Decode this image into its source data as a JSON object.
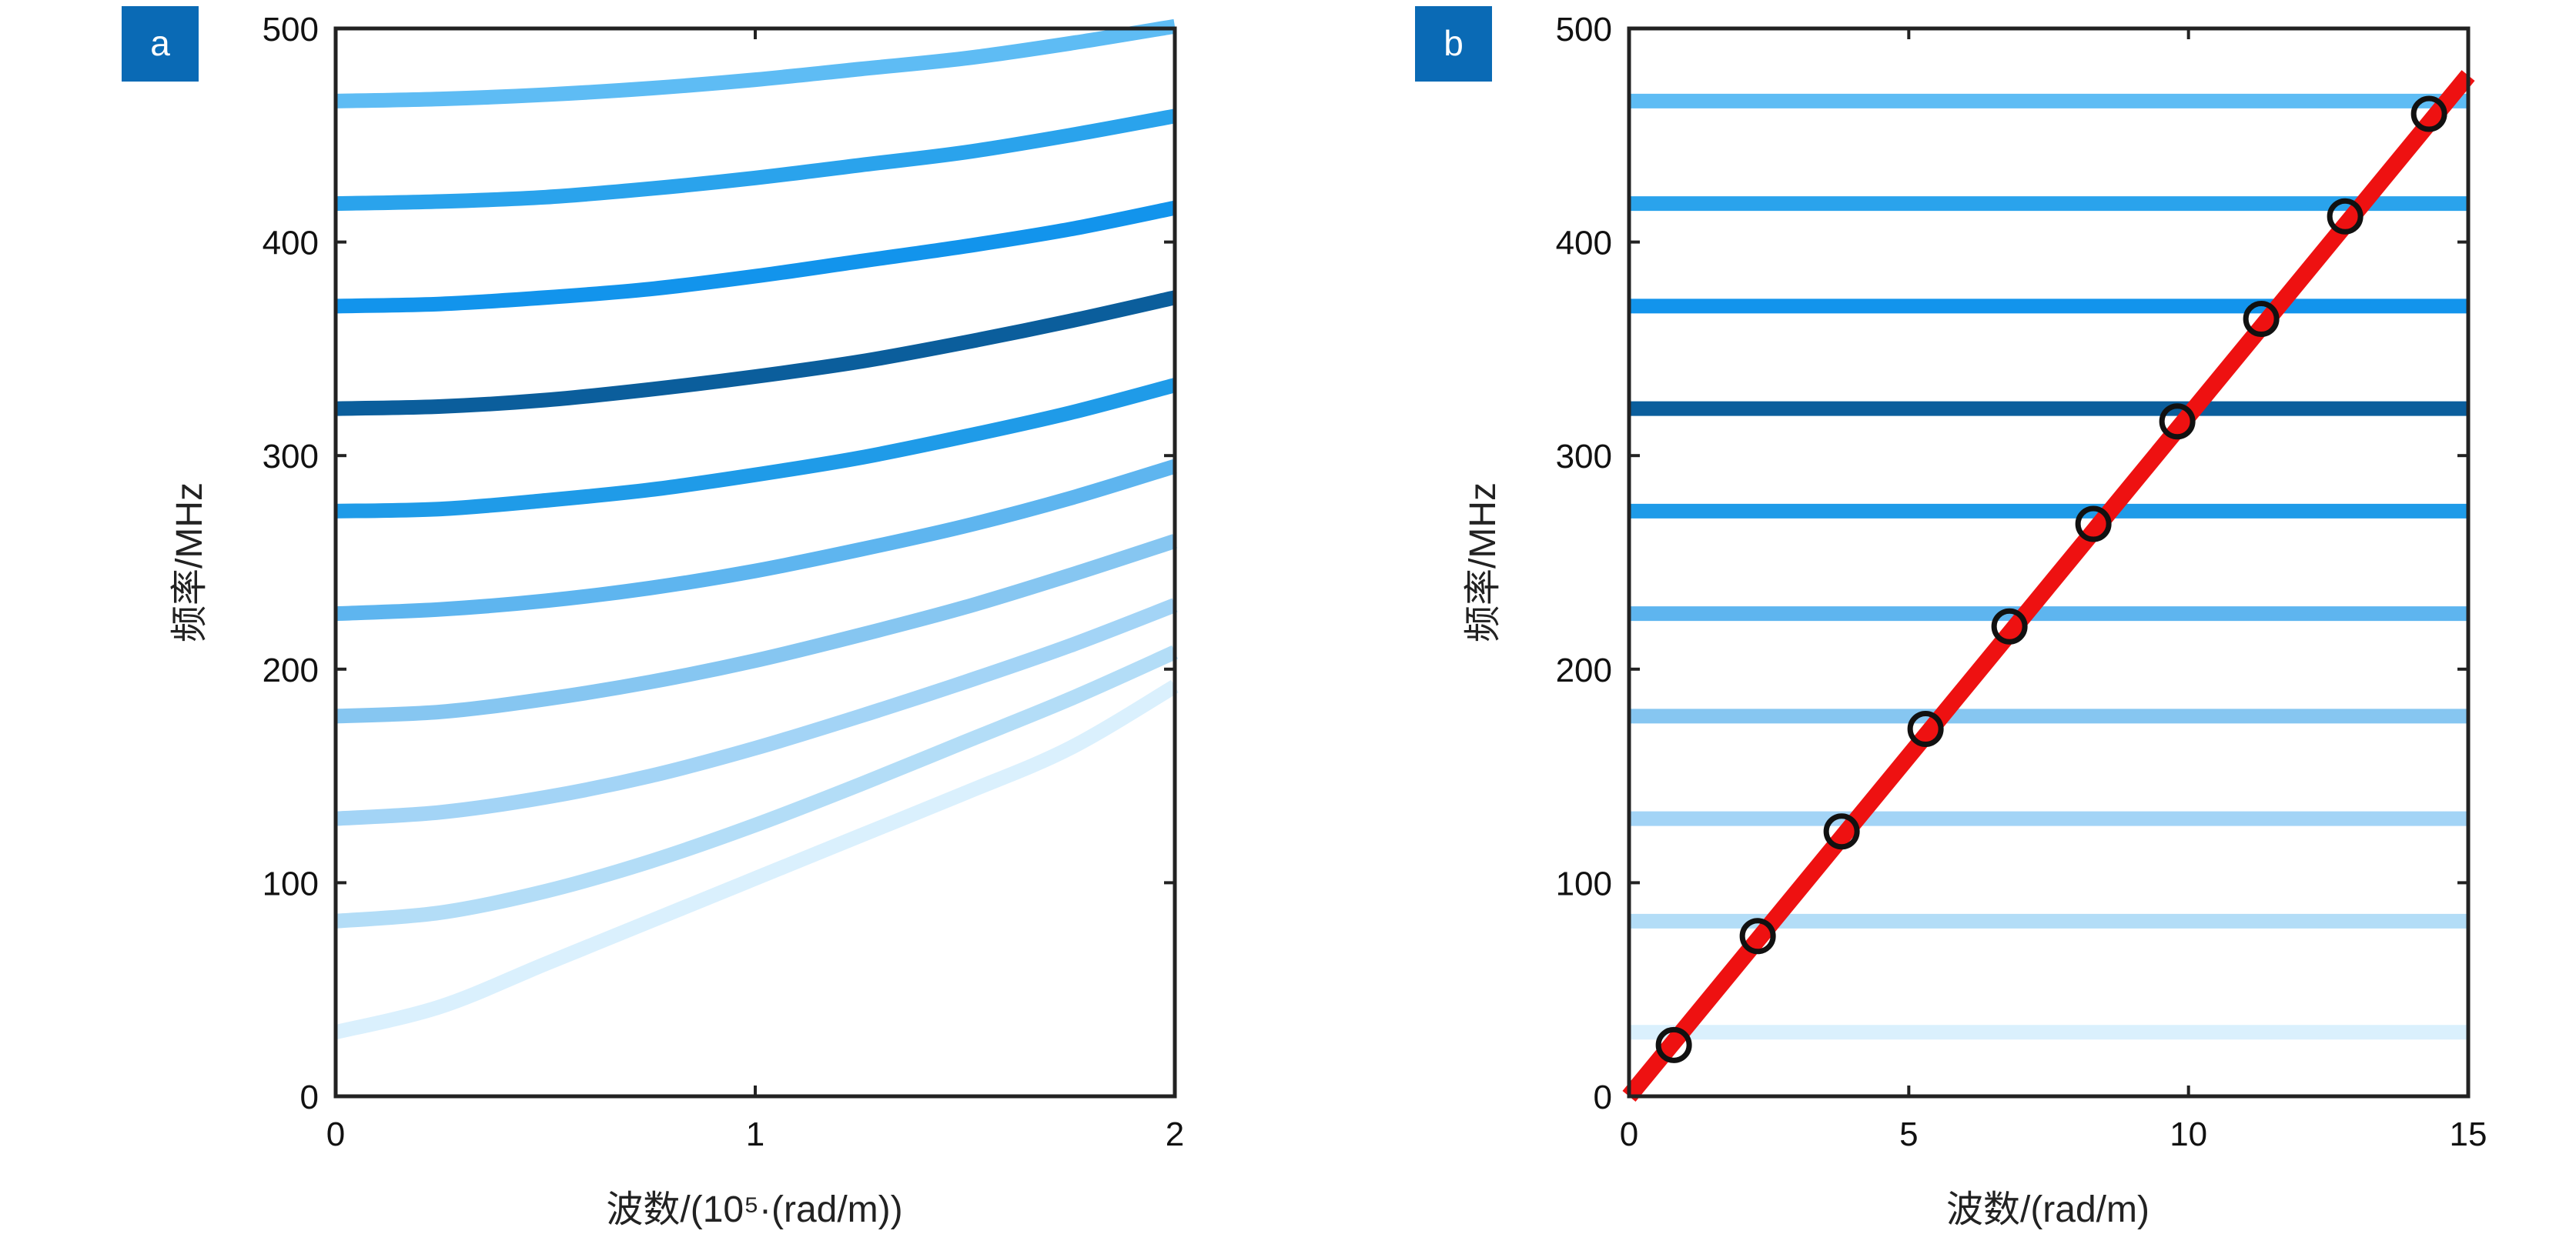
{
  "chart_data": [
    {
      "panel": "a",
      "type": "line",
      "xlabel": "波数/(10⁵·(rad/m))",
      "ylabel": "频率/MHz",
      "xlim": [
        0,
        2
      ],
      "ylim": [
        0,
        500
      ],
      "xticks": [
        0,
        1,
        2
      ],
      "yticks": [
        0,
        100,
        200,
        300,
        400,
        500
      ],
      "grid": false,
      "series": [
        {
          "color": "#daf0fd",
          "x": [
            0,
            0.25,
            0.5,
            0.75,
            1.0,
            1.25,
            1.5,
            1.75,
            2.0
          ],
          "y": [
            30,
            42,
            62,
            82,
            102,
            122,
            142,
            163,
            192
          ]
        },
        {
          "color": "#b3ddf7",
          "x": [
            0,
            0.25,
            0.5,
            0.75,
            1.0,
            1.25,
            1.5,
            1.75,
            2.0
          ],
          "y": [
            82,
            86,
            96,
            110,
            127,
            146,
            166,
            186,
            208
          ]
        },
        {
          "color": "#a3d4f6",
          "x": [
            0,
            0.25,
            0.5,
            0.75,
            1.0,
            1.25,
            1.5,
            1.75,
            2.0
          ],
          "y": [
            130,
            133,
            140,
            150,
            163,
            178,
            194,
            211,
            230
          ]
        },
        {
          "color": "#86c6f1",
          "x": [
            0,
            0.25,
            0.5,
            0.75,
            1.0,
            1.25,
            1.5,
            1.75,
            2.0
          ],
          "y": [
            178,
            180,
            186,
            194,
            204,
            216,
            229,
            244,
            260
          ]
        },
        {
          "color": "#5eb5ef",
          "x": [
            0,
            0.25,
            0.5,
            0.75,
            1.0,
            1.25,
            1.5,
            1.75,
            2.0
          ],
          "y": [
            226,
            228,
            232,
            238,
            246,
            256,
            267,
            280,
            295
          ]
        },
        {
          "color": "#1f9be8",
          "x": [
            0,
            0.25,
            0.5,
            0.75,
            1.0,
            1.25,
            1.5,
            1.75,
            2.0
          ],
          "y": [
            274,
            275,
            279,
            284,
            291,
            299,
            309,
            320,
            333
          ]
        },
        {
          "color": "#0b5e9c",
          "x": [
            0,
            0.25,
            0.5,
            0.75,
            1.0,
            1.25,
            1.5,
            1.75,
            2.0
          ],
          "y": [
            322,
            323,
            326,
            331,
            337,
            344,
            353,
            363,
            374
          ]
        },
        {
          "color": "#1294ec",
          "x": [
            0,
            0.25,
            0.5,
            0.75,
            1.0,
            1.25,
            1.5,
            1.75,
            2.0
          ],
          "y": [
            370,
            371,
            374,
            378,
            384,
            391,
            398,
            406,
            416
          ]
        },
        {
          "color": "#2aa3ec",
          "x": [
            0,
            0.25,
            0.5,
            0.75,
            1.0,
            1.25,
            1.5,
            1.75,
            2.0
          ],
          "y": [
            418,
            419,
            421,
            425,
            430,
            436,
            442,
            450,
            459
          ]
        },
        {
          "color": "#5ebcf4",
          "x": [
            0,
            0.25,
            0.5,
            0.75,
            1.0,
            1.25,
            1.5,
            1.75,
            2.0
          ],
          "y": [
            466,
            467,
            469,
            472,
            476,
            481,
            486,
            493,
            501
          ]
        }
      ]
    },
    {
      "panel": "b",
      "type": "line",
      "xlabel": "波数/(rad/m)",
      "ylabel": "频率/MHz",
      "xlim": [
        0,
        15
      ],
      "ylim": [
        0,
        500
      ],
      "xticks": [
        0,
        5,
        10,
        15
      ],
      "yticks": [
        0,
        100,
        200,
        300,
        400,
        500
      ],
      "grid": false,
      "hlines": [
        {
          "y": 30,
          "color": "#daf0fd"
        },
        {
          "y": 82,
          "color": "#b3ddf7"
        },
        {
          "y": 130,
          "color": "#a3d4f6"
        },
        {
          "y": 178,
          "color": "#86c6f1"
        },
        {
          "y": 226,
          "color": "#5eb5ef"
        },
        {
          "y": 274,
          "color": "#1f9be8"
        },
        {
          "y": 322,
          "color": "#0b5e9c"
        },
        {
          "y": 370,
          "color": "#1294ec"
        },
        {
          "y": 418,
          "color": "#2aa3ec"
        },
        {
          "y": 466,
          "color": "#5ebcf4"
        }
      ],
      "line": {
        "color": "#ee1111",
        "x": [
          0,
          15
        ],
        "y": [
          0,
          478
        ]
      },
      "markers": {
        "color": "#111111",
        "x": [
          0.8,
          2.3,
          3.8,
          5.3,
          6.8,
          8.3,
          9.8,
          11.3,
          12.8,
          14.3
        ],
        "y": [
          24,
          75,
          124,
          172,
          220,
          268,
          316,
          364,
          412,
          460
        ]
      }
    }
  ],
  "panels": {
    "a": {
      "badge": "a",
      "badge_color": "#0a6ab5"
    },
    "b": {
      "badge": "b",
      "badge_color": "#0a6ab5"
    }
  }
}
